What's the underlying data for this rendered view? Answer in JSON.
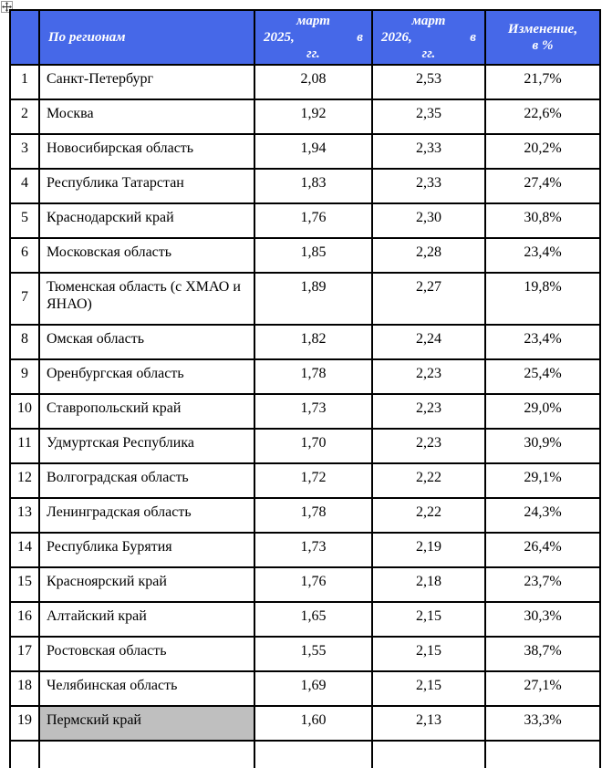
{
  "colors": {
    "header_bg": "#4668e8",
    "header_text": "#ffffff",
    "border": "#000000",
    "highlight": "#bfbfbf",
    "page_bg": "#ffffff"
  },
  "move_handle": {
    "icon": "move-icon"
  },
  "table": {
    "header": {
      "num": "",
      "region": "По регионам",
      "col2025": {
        "label": "март 2025, в гг.",
        "line1": "март",
        "line2_left": "2025,",
        "line2_right": "в",
        "line3": "гг."
      },
      "col2026": {
        "label": "март 2026, в гг.",
        "line1": "март",
        "line2_left": "2026,",
        "line2_right": "в",
        "line3": "гг."
      },
      "change": {
        "label": "Изменение, в %",
        "line1": "Изменение,",
        "line2": "в %"
      }
    },
    "rows": [
      {
        "num": "1",
        "region": "Санкт-Петербург",
        "mar2025": "2,08",
        "mar2026": "2,53",
        "change": "21,7%",
        "highlighted": false
      },
      {
        "num": "2",
        "region": "Москва",
        "mar2025": "1,92",
        "mar2026": "2,35",
        "change": "22,6%",
        "highlighted": false
      },
      {
        "num": "3",
        "region": "Новосибирская область",
        "mar2025": "1,94",
        "mar2026": "2,33",
        "change": "20,2%",
        "highlighted": false
      },
      {
        "num": "4",
        "region": "Республика Татарстан",
        "mar2025": "1,83",
        "mar2026": "2,33",
        "change": "27,4%",
        "highlighted": false
      },
      {
        "num": "5",
        "region": "Краснодарский край",
        "mar2025": "1,76",
        "mar2026": "2,30",
        "change": "30,8%",
        "highlighted": false
      },
      {
        "num": "6",
        "region": "Московская область",
        "mar2025": "1,85",
        "mar2026": "2,28",
        "change": "23,4%",
        "highlighted": false
      },
      {
        "num": "7",
        "region": "Тюменская область (с ХМАО и ЯНАО)",
        "mar2025": "1,89",
        "mar2026": "2,27",
        "change": "19,8%",
        "highlighted": false
      },
      {
        "num": "8",
        "region": "Омская область",
        "mar2025": "1,82",
        "mar2026": "2,24",
        "change": "23,4%",
        "highlighted": false
      },
      {
        "num": "9",
        "region": "Оренбургская область",
        "mar2025": "1,78",
        "mar2026": "2,23",
        "change": "25,4%",
        "highlighted": false
      },
      {
        "num": "10",
        "region": "Ставропольский край",
        "mar2025": "1,73",
        "mar2026": "2,23",
        "change": "29,0%",
        "highlighted": false
      },
      {
        "num": "11",
        "region": "Удмуртская Республика",
        "mar2025": "1,70",
        "mar2026": "2,23",
        "change": "30,9%",
        "highlighted": false
      },
      {
        "num": "12",
        "region": "Волгоградская область",
        "mar2025": "1,72",
        "mar2026": "2,22",
        "change": "29,1%",
        "highlighted": false
      },
      {
        "num": "13",
        "region": "Ленинградская область",
        "mar2025": "1,78",
        "mar2026": "2,22",
        "change": "24,3%",
        "highlighted": false
      },
      {
        "num": "14",
        "region": "Республика Бурятия",
        "mar2025": "1,73",
        "mar2026": "2,19",
        "change": "26,4%",
        "highlighted": false
      },
      {
        "num": "15",
        "region": "Красноярский край",
        "mar2025": "1,76",
        "mar2026": "2,18",
        "change": "23,7%",
        "highlighted": false
      },
      {
        "num": "16",
        "region": "Алтайский край",
        "mar2025": "1,65",
        "mar2026": "2,15",
        "change": "30,3%",
        "highlighted": false
      },
      {
        "num": "17",
        "region": "Ростовская область",
        "mar2025": "1,55",
        "mar2026": "2,15",
        "change": "38,7%",
        "highlighted": false
      },
      {
        "num": "18",
        "region": "Челябинская область",
        "mar2025": "1,69",
        "mar2026": "2,15",
        "change": "27,1%",
        "highlighted": false
      },
      {
        "num": "19",
        "region": "Пермский край",
        "mar2025": "1,60",
        "mar2026": "2,13",
        "change": "33,3%",
        "highlighted": true
      }
    ]
  }
}
